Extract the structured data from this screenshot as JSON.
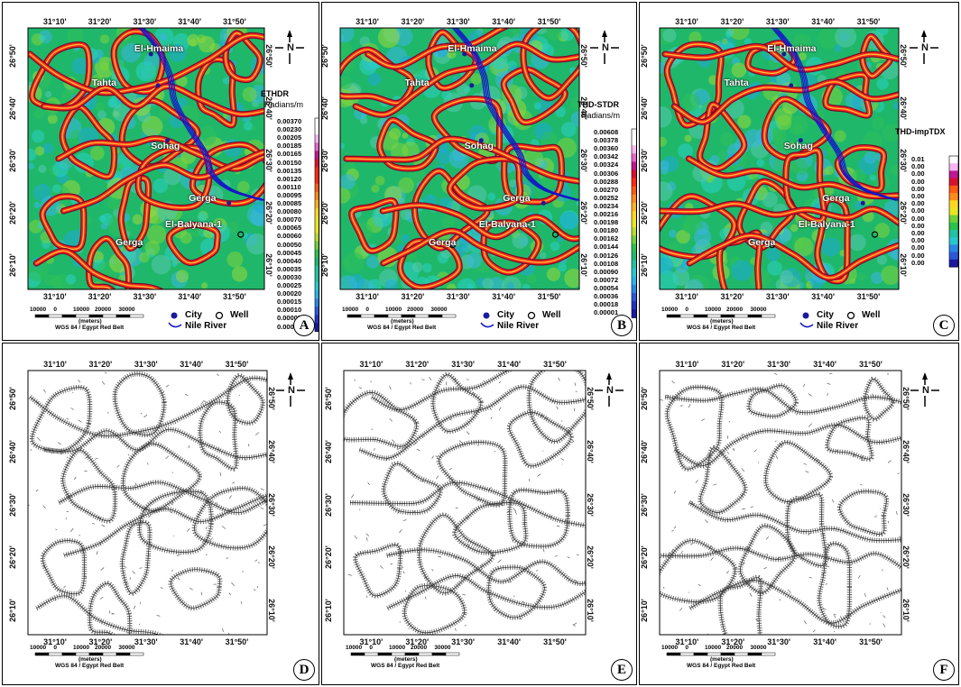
{
  "x_ticks": [
    "31°10'",
    "31°20'",
    "31°30'",
    "31°40'",
    "31°50'"
  ],
  "y_ticks": [
    "26°50'",
    "26°40'",
    "26°30'",
    "26°20'",
    "26°10'"
  ],
  "scale": {
    "numbers": [
      "10000",
      "0",
      "10000",
      "20000",
      "30000"
    ],
    "unit": "(meters)",
    "projection": "WGS 84 / Egypt Red Belt"
  },
  "legend": {
    "city": "City",
    "well": "Well",
    "river": "Nile River"
  },
  "cities": [
    "El-Hmaima",
    "Tahta",
    "Sohag",
    "Gerga",
    "El-Balyana-1",
    "Gerga"
  ],
  "north_symbol": "N",
  "panels": [
    {
      "letter": "A",
      "type": "color",
      "colorbar": {
        "title": "ETHDR",
        "unit": "Radians/m",
        "labels": [
          "0.00370",
          "0.00230",
          "0.00205",
          "0.00185",
          "0.00165",
          "0.00150",
          "0.00135",
          "0.00120",
          "0.00110",
          "0.00095",
          "0.00085",
          "0.00080",
          "0.00070",
          "0.00065",
          "0.00060",
          "0.00050",
          "0.00045",
          "0.00040",
          "0.00035",
          "0.00030",
          "0.00025",
          "0.00020",
          "0.00015",
          "0.00010",
          "0.00005",
          "0.00000"
        ]
      }
    },
    {
      "letter": "B",
      "type": "color",
      "colorbar": {
        "title": "THD-STDR",
        "unit": "Radians/m",
        "labels": [
          "0.00608",
          "0.00378",
          "0.00360",
          "0.00342",
          "0.00324",
          "0.00306",
          "0.00288",
          "0.00270",
          "0.00252",
          "0.00234",
          "0.00216",
          "0.00198",
          "0.00180",
          "0.00162",
          "0.00144",
          "0.00126",
          "0.00108",
          "0.00090",
          "0.00072",
          "0.00054",
          "0.00036",
          "0.00018",
          "0.00001"
        ]
      }
    },
    {
      "letter": "C",
      "type": "color",
      "colorbar": {
        "title": "THD-impTDX",
        "unit": "",
        "labels": [
          "0.01",
          "0.00",
          "0.00",
          "0.00",
          "0.00",
          "0.00",
          "0.00",
          "0.00",
          "0.00",
          "0.00",
          "0.00",
          "0.00",
          "0.00",
          "0.00",
          "0.00"
        ]
      }
    },
    {
      "letter": "D",
      "type": "lines"
    },
    {
      "letter": "E",
      "type": "lines"
    },
    {
      "letter": "F",
      "type": "lines"
    }
  ]
}
